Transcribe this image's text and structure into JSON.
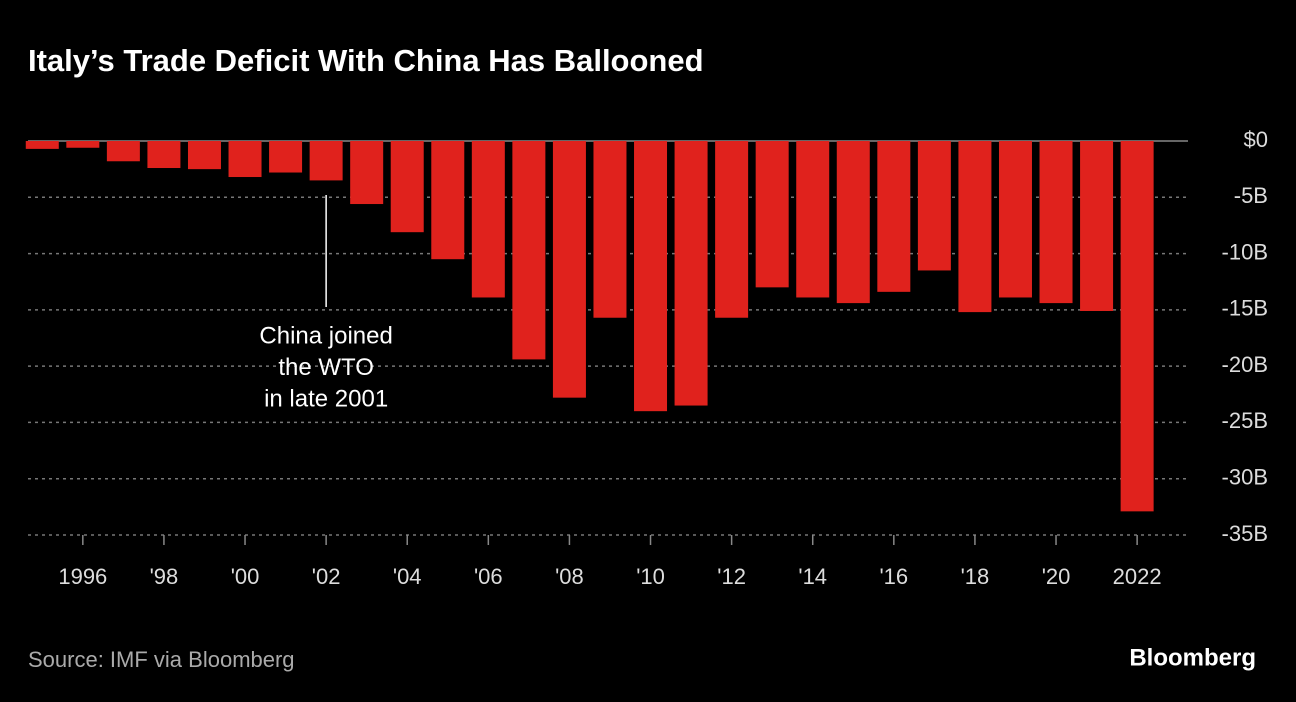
{
  "chart_data": {
    "type": "bar",
    "title": "Italy’s Trade Deficit With China Has Ballooned",
    "categories": [
      null,
      "1996",
      null,
      "'98",
      null,
      "'00",
      null,
      "'02",
      null,
      "'04",
      null,
      "'06",
      null,
      "'08",
      null,
      "'10",
      null,
      "'12",
      null,
      "'14",
      null,
      "'16",
      null,
      "'18",
      null,
      "'20",
      null,
      "2022"
    ],
    "values": [
      -0.7,
      -0.6,
      -1.8,
      -2.4,
      -2.5,
      -3.2,
      -2.8,
      -3.5,
      -5.6,
      -8.1,
      -10.5,
      -13.9,
      -19.4,
      -22.8,
      -15.7,
      -24.0,
      -23.5,
      -15.7,
      -13.0,
      -13.9,
      -14.4,
      -13.4,
      -11.5,
      -15.2,
      -13.9,
      -14.4,
      -15.1,
      -32.9
    ],
    "color": "#e0221d",
    "ylim": [
      -35,
      0
    ],
    "yticks": [
      {
        "value": 0,
        "label": "$0"
      },
      {
        "value": -5,
        "label": "-5B"
      },
      {
        "value": -10,
        "label": "-10B"
      },
      {
        "value": -15,
        "label": "-15B"
      },
      {
        "value": -20,
        "label": "-20B"
      },
      {
        "value": -25,
        "label": "-25B"
      },
      {
        "value": -30,
        "label": "-30B"
      },
      {
        "value": -35,
        "label": "-35B"
      }
    ],
    "grid": true,
    "annotation": [
      "China joined",
      "the WTO",
      "in late 2001"
    ],
    "source": "Source: IMF via Bloomberg",
    "brand": "Bloomberg"
  }
}
